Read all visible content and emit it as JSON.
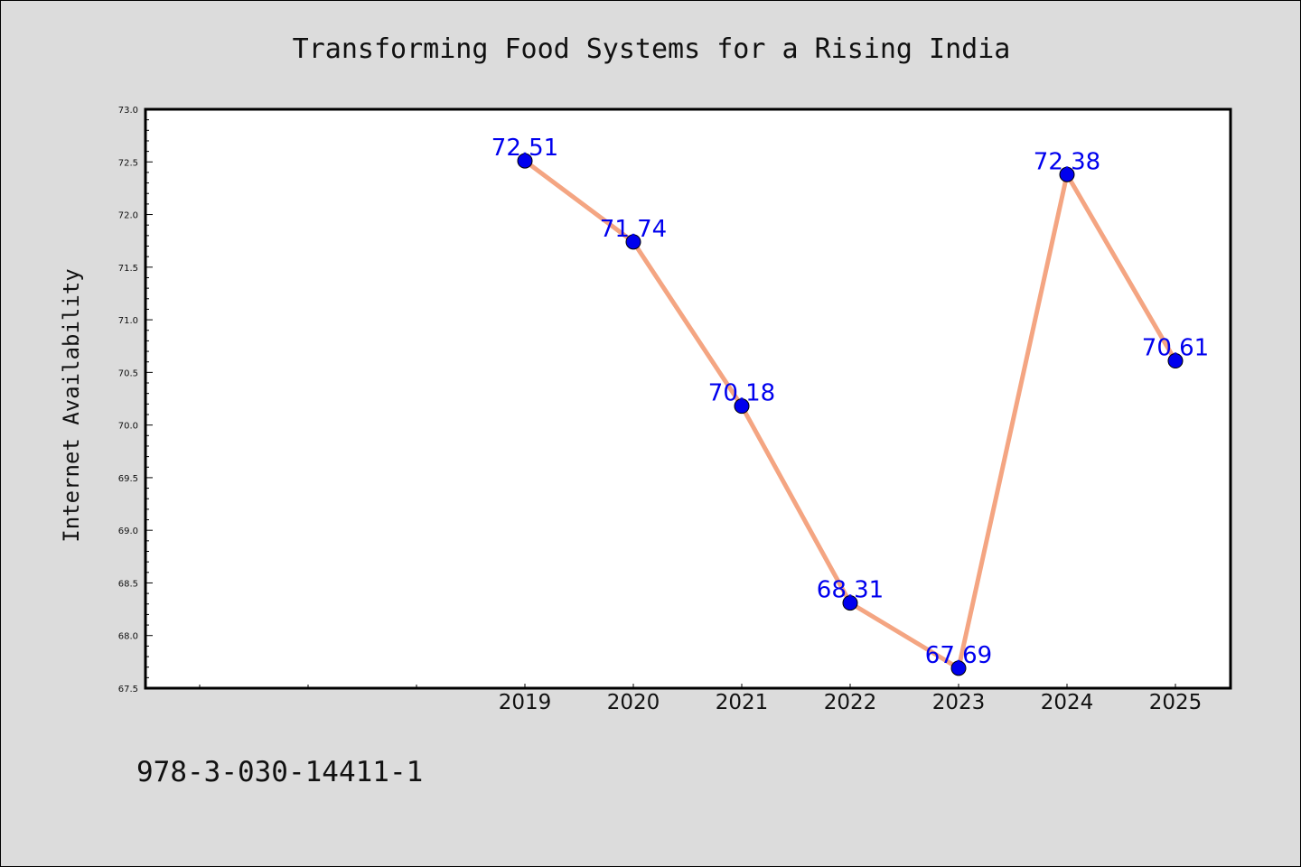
{
  "chart_data": {
    "type": "line",
    "title": "Transforming Food Systems for a Rising India",
    "xlabel": "",
    "ylabel": "Internet Availability",
    "x": [
      "2019",
      "2020",
      "2021",
      "2022",
      "2023",
      "2024",
      "2025"
    ],
    "series": [
      {
        "values": [
          72.51,
          71.74,
          70.18,
          68.31,
          67.69,
          72.38,
          70.61
        ],
        "labels": [
          "72.51",
          "71.74",
          "70.18",
          "68.31",
          "67.69",
          "72.38",
          "70.61"
        ]
      }
    ],
    "ylim": [
      67.5,
      73.0
    ],
    "yticks": [
      "67.5",
      "68.0",
      "68.5",
      "69.0",
      "69.5",
      "70.0",
      "70.5",
      "71.0",
      "71.5",
      "72.0",
      "72.5",
      "73.0"
    ],
    "grid": false,
    "colors": {
      "line": "#f4a582",
      "marker": "#0000ee",
      "labels": "#0000ee"
    }
  },
  "footer": {
    "isbn": "978-3-030-14411-1"
  }
}
